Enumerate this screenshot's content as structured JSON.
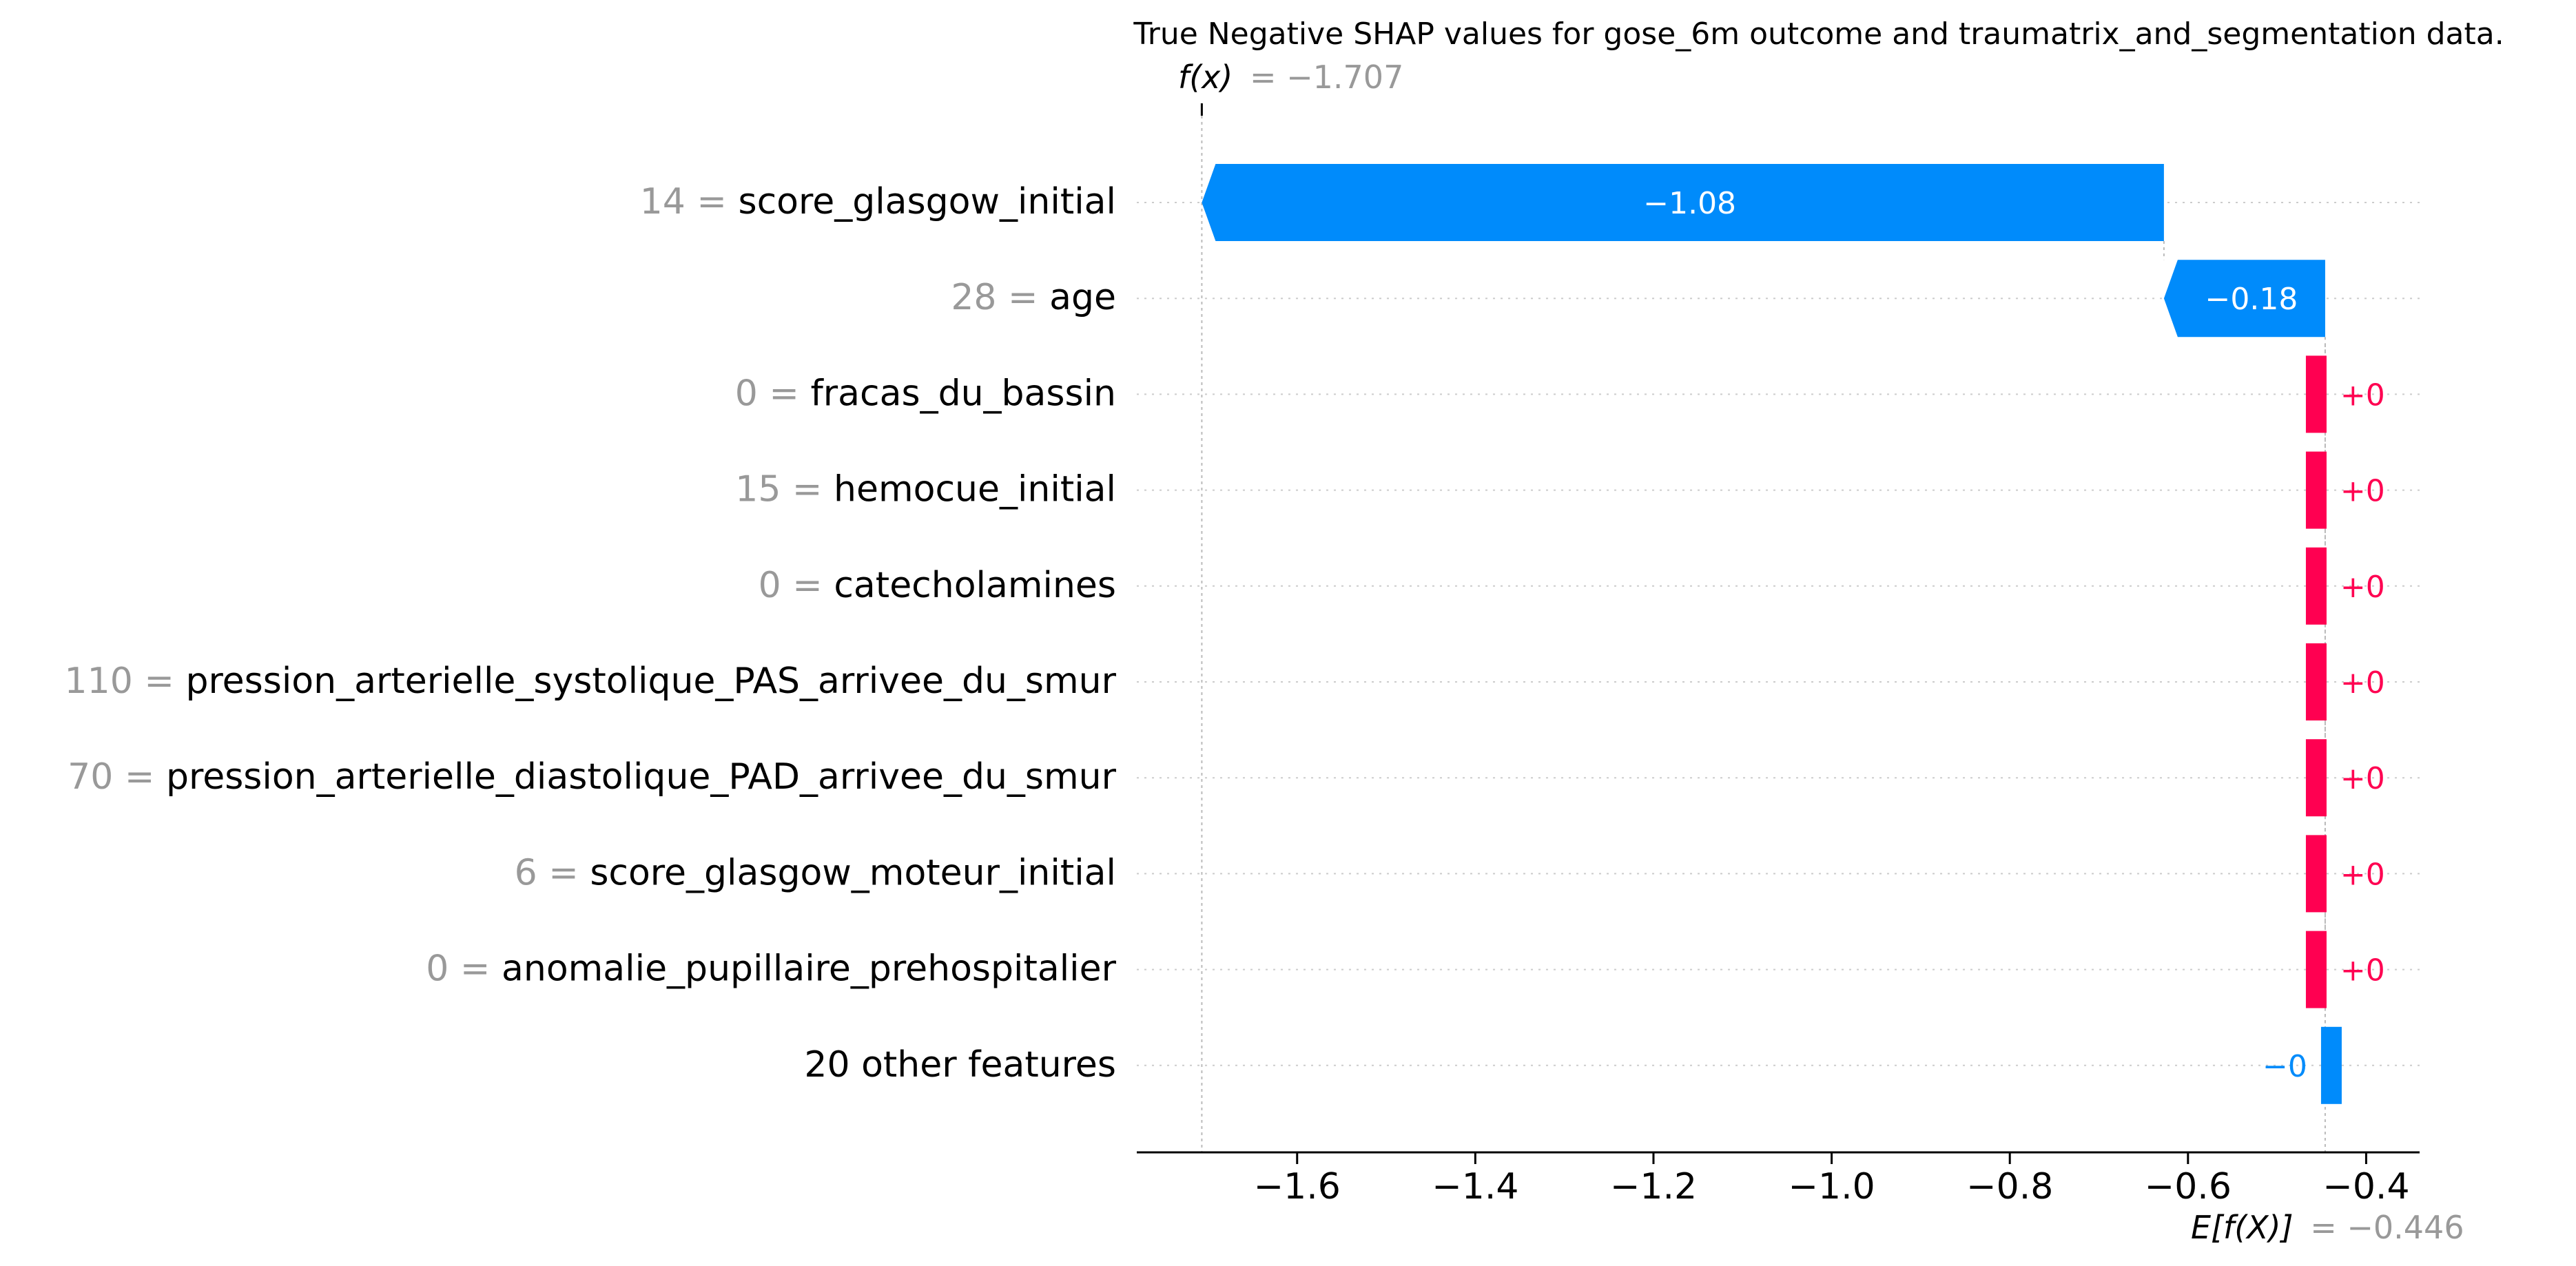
{
  "chart_data": {
    "type": "waterfall",
    "title": "True Negative SHAP values for gose_6m outcome and traumatrix_and_segmentation data.",
    "fx_label": "f(x)",
    "fx_value_text": "= −1.707",
    "fx_value": -1.707,
    "ex_label": "E[f(X)]",
    "ex_value_text": "= −0.446",
    "ex_value": -0.446,
    "xlim": [
      -1.78,
      -0.34
    ],
    "x_ticks": [
      -1.6,
      -1.4,
      -1.2,
      -1.0,
      -0.8,
      -0.6,
      -0.4
    ],
    "x_tick_labels": [
      "−1.6",
      "−1.4",
      "−1.2",
      "−1.0",
      "−0.8",
      "−0.6",
      "−0.4"
    ],
    "features": [
      {
        "value_text": "14 =",
        "name": "score_glasgow_initial",
        "shap": -1.08,
        "label": "−1.08",
        "start": -0.627,
        "end": -1.707
      },
      {
        "value_text": "28 =",
        "name": "age",
        "shap": -0.18,
        "label": "−0.18",
        "start": -0.446,
        "end": -0.627
      },
      {
        "value_text": "0 =",
        "name": "fracas_du_bassin",
        "shap": 0,
        "label": "+0",
        "start": -0.446,
        "end": -0.446
      },
      {
        "value_text": "15 =",
        "name": "hemocue_initial",
        "shap": 0,
        "label": "+0",
        "start": -0.446,
        "end": -0.446
      },
      {
        "value_text": "0 =",
        "name": "catecholamines",
        "shap": 0,
        "label": "+0",
        "start": -0.446,
        "end": -0.446
      },
      {
        "value_text": "110 =",
        "name": "pression_arterielle_systolique_PAS_arrivee_du_smur",
        "shap": 0,
        "label": "+0",
        "start": -0.446,
        "end": -0.446
      },
      {
        "value_text": "70 =",
        "name": "pression_arterielle_diastolique_PAD_arrivee_du_smur",
        "shap": 0,
        "label": "+0",
        "start": -0.446,
        "end": -0.446
      },
      {
        "value_text": "6 =",
        "name": "score_glasgow_moteur_initial",
        "shap": 0,
        "label": "+0",
        "start": -0.446,
        "end": -0.446
      },
      {
        "value_text": "0 =",
        "name": "anomalie_pupillaire_prehospitalier",
        "shap": 0,
        "label": "+0",
        "start": -0.446,
        "end": -0.446
      },
      {
        "value_text": "",
        "name": "20 other features",
        "shap": 0,
        "label": "−0",
        "start": -0.446,
        "end": -0.446
      }
    ],
    "colors": {
      "negative": "#008bfb",
      "positive": "#ff0051",
      "value_gray": "#999999",
      "text": "#000000",
      "grid": "#cccccc"
    }
  }
}
